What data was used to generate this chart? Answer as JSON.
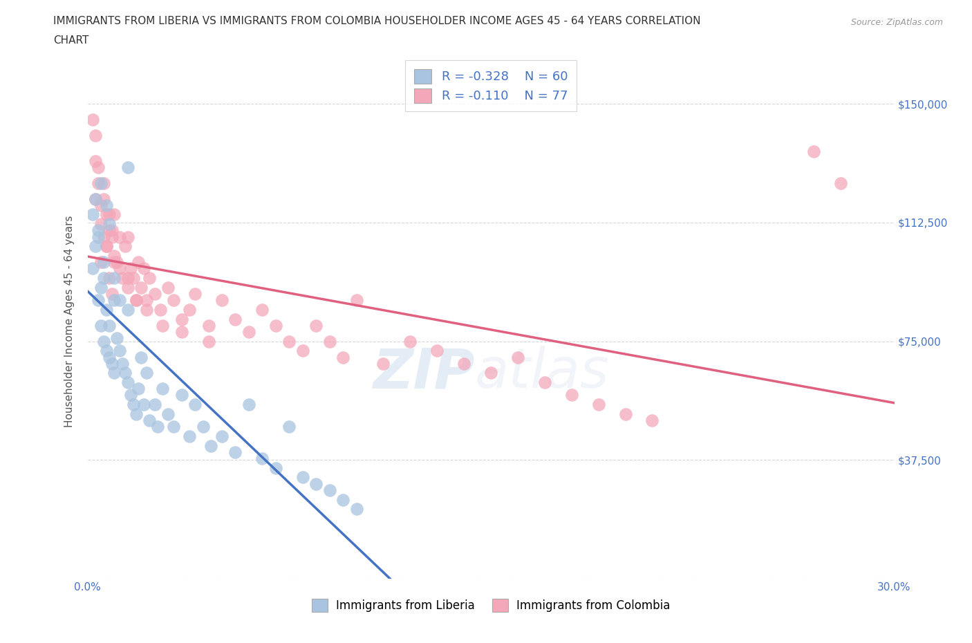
{
  "title_line1": "IMMIGRANTS FROM LIBERIA VS IMMIGRANTS FROM COLOMBIA HOUSEHOLDER INCOME AGES 45 - 64 YEARS CORRELATION",
  "title_line2": "CHART",
  "source_text": "Source: ZipAtlas.com",
  "ylabel": "Householder Income Ages 45 - 64 years",
  "xlim": [
    0.0,
    0.3
  ],
  "ylim": [
    0,
    162500
  ],
  "yticks": [
    0,
    37500,
    75000,
    112500,
    150000
  ],
  "ytick_labels": [
    "",
    "$37,500",
    "$75,000",
    "$112,500",
    "$150,000"
  ],
  "xticks": [
    0.0,
    0.05,
    0.1,
    0.15,
    0.2,
    0.25,
    0.3
  ],
  "xtick_labels": [
    "0.0%",
    "",
    "",
    "",
    "",
    "",
    "30.0%"
  ],
  "liberia_R": -0.328,
  "liberia_N": 60,
  "colombia_R": -0.11,
  "colombia_N": 77,
  "liberia_color": "#a8c4e0",
  "colombia_color": "#f4a7b9",
  "liberia_line_color": "#4472c4",
  "colombia_line_color": "#e06080",
  "watermark_text": "ZIPatlas",
  "background_color": "#ffffff",
  "grid_color": "#cccccc",
  "liberia_x": [
    0.002,
    0.003,
    0.004,
    0.004,
    0.005,
    0.005,
    0.006,
    0.006,
    0.007,
    0.007,
    0.008,
    0.008,
    0.009,
    0.01,
    0.01,
    0.011,
    0.012,
    0.013,
    0.014,
    0.015,
    0.015,
    0.016,
    0.017,
    0.018,
    0.019,
    0.02,
    0.021,
    0.022,
    0.023,
    0.025,
    0.026,
    0.028,
    0.03,
    0.032,
    0.035,
    0.038,
    0.04,
    0.043,
    0.046,
    0.05,
    0.055,
    0.06,
    0.065,
    0.07,
    0.075,
    0.08,
    0.085,
    0.09,
    0.095,
    0.1,
    0.002,
    0.003,
    0.004,
    0.005,
    0.006,
    0.007,
    0.008,
    0.01,
    0.012,
    0.015
  ],
  "liberia_y": [
    98000,
    105000,
    110000,
    88000,
    92000,
    80000,
    95000,
    75000,
    72000,
    85000,
    70000,
    80000,
    68000,
    88000,
    65000,
    76000,
    72000,
    68000,
    65000,
    62000,
    85000,
    58000,
    55000,
    52000,
    60000,
    70000,
    55000,
    65000,
    50000,
    55000,
    48000,
    60000,
    52000,
    48000,
    58000,
    45000,
    55000,
    48000,
    42000,
    45000,
    40000,
    55000,
    38000,
    35000,
    48000,
    32000,
    30000,
    28000,
    25000,
    22000,
    115000,
    120000,
    108000,
    125000,
    100000,
    118000,
    112000,
    95000,
    88000,
    130000
  ],
  "colombia_x": [
    0.002,
    0.003,
    0.003,
    0.004,
    0.005,
    0.005,
    0.006,
    0.006,
    0.007,
    0.007,
    0.008,
    0.008,
    0.009,
    0.009,
    0.01,
    0.01,
    0.011,
    0.012,
    0.013,
    0.014,
    0.015,
    0.015,
    0.016,
    0.017,
    0.018,
    0.019,
    0.02,
    0.021,
    0.022,
    0.023,
    0.025,
    0.027,
    0.03,
    0.032,
    0.035,
    0.038,
    0.04,
    0.045,
    0.05,
    0.055,
    0.06,
    0.065,
    0.07,
    0.075,
    0.08,
    0.085,
    0.09,
    0.095,
    0.1,
    0.11,
    0.12,
    0.13,
    0.14,
    0.15,
    0.16,
    0.17,
    0.18,
    0.19,
    0.2,
    0.21,
    0.003,
    0.004,
    0.005,
    0.006,
    0.007,
    0.008,
    0.009,
    0.01,
    0.012,
    0.015,
    0.018,
    0.022,
    0.028,
    0.035,
    0.045,
    0.27,
    0.28
  ],
  "colombia_y": [
    145000,
    140000,
    120000,
    130000,
    118000,
    100000,
    108000,
    125000,
    115000,
    105000,
    110000,
    95000,
    108000,
    90000,
    102000,
    115000,
    100000,
    98000,
    95000,
    105000,
    92000,
    108000,
    98000,
    95000,
    88000,
    100000,
    92000,
    98000,
    88000,
    95000,
    90000,
    85000,
    92000,
    88000,
    82000,
    85000,
    90000,
    80000,
    88000,
    82000,
    78000,
    85000,
    80000,
    75000,
    72000,
    80000,
    75000,
    70000,
    88000,
    68000,
    75000,
    72000,
    68000,
    65000,
    70000,
    62000,
    58000,
    55000,
    52000,
    50000,
    132000,
    125000,
    112000,
    120000,
    105000,
    115000,
    110000,
    100000,
    108000,
    95000,
    88000,
    85000,
    80000,
    78000,
    75000,
    135000,
    125000
  ]
}
